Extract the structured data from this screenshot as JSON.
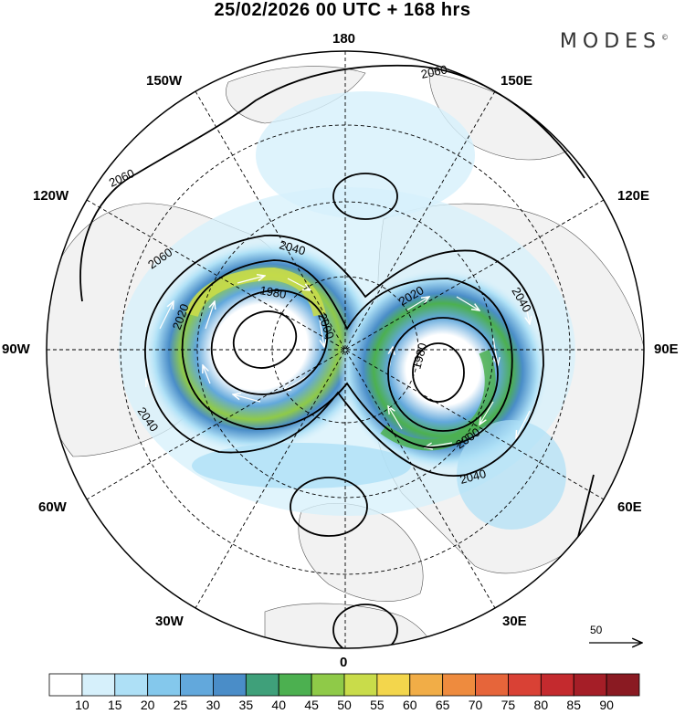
{
  "title": "25/02/2026  00 UTC  + 168 hrs",
  "brand": "MODES",
  "brand_mark": "©",
  "longitude_labels": {
    "top": "180",
    "upper_left": "150W",
    "upper_right": "150E",
    "left_upper": "120W",
    "right_upper": "120E",
    "left": "90W",
    "right": "90E",
    "left_lower": "60W",
    "right_lower": "60E",
    "lower_left": "30W",
    "lower_right": "30E",
    "bottom": "0"
  },
  "contour_labels": [
    "2060",
    "2060",
    "2060",
    "2040",
    "2040",
    "2040",
    "2040",
    "2020",
    "2020",
    "2000",
    "2000",
    "1980",
    "1980"
  ],
  "reference_vector": {
    "label": "50",
    "value": 50
  },
  "colorbar": {
    "ticks": [
      "10",
      "15",
      "20",
      "25",
      "30",
      "35",
      "40",
      "45",
      "50",
      "55",
      "60",
      "65",
      "70",
      "75",
      "80",
      "85",
      "90"
    ],
    "colors": [
      "#ffffff",
      "#d6f0fb",
      "#aee0f6",
      "#84c8ec",
      "#62a8dc",
      "#4a8dc8",
      "#3fa07a",
      "#4cb050",
      "#8fca48",
      "#c9dc4a",
      "#f3d64c",
      "#f1ad47",
      "#ee8b3e",
      "#e6653a",
      "#d94135",
      "#c42a2e",
      "#a51e27",
      "#8a1a22"
    ]
  },
  "colors": {
    "land": "#f2f2f2",
    "ocean": "#ffffff",
    "contour": "#000000",
    "grid": "#000000"
  }
}
